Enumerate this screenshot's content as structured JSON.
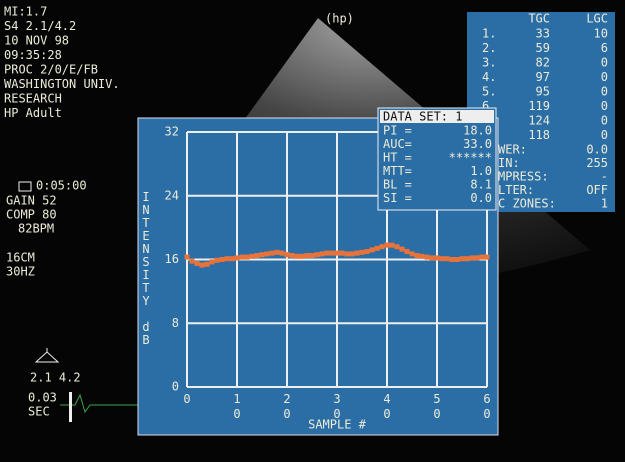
{
  "header": {
    "logo": "(hp)"
  },
  "left_panel": {
    "lines": [
      "MI:1.7",
      "S4 2.1/4.2",
      "10 NOV 98",
      "09:35:28",
      "PROC 2/0/E/FB",
      "WASHINGTON UNIV.",
      "RESEARCH",
      "HP Adult"
    ],
    "settings": [
      "0:05:00",
      "GAIN 52",
      "COMP 80",
      "82BPM",
      "16CM",
      "30HZ"
    ],
    "probe": "2.1 4.2",
    "sweep": [
      "0.03",
      "SEC"
    ]
  },
  "tgc_table": {
    "headers": [
      "TGC",
      "LGC"
    ],
    "rows": [
      {
        "label": "1.",
        "tgc": 33,
        "lgc": 10
      },
      {
        "label": "2.",
        "tgc": 59,
        "lgc": 6
      },
      {
        "label": "3.",
        "tgc": 82,
        "lgc": 0
      },
      {
        "label": "4.",
        "tgc": 97,
        "lgc": 0
      },
      {
        "label": "5.",
        "tgc": 95,
        "lgc": 0
      },
      {
        "label": "6",
        "tgc": 119,
        "lgc": 0
      },
      {
        "tgc": 124,
        "lgc": 0
      },
      {
        "tgc": 118,
        "lgc": 0
      }
    ],
    "extras": [
      {
        "label": "WER:",
        "value": "0.0"
      },
      {
        "label": "IN:",
        "value": "255"
      },
      {
        "label": "MPRESS:",
        "value": "-"
      },
      {
        "label": "LTER:",
        "value": "OFF"
      },
      {
        "label": "C ZONES:",
        "value": "1"
      }
    ]
  },
  "data_set": {
    "title": "DATA SET: 1",
    "rows": [
      {
        "label": "PI =",
        "value": "18.0"
      },
      {
        "label": "AUC=",
        "value": "33.0"
      },
      {
        "label": "HT =",
        "value": "******"
      },
      {
        "label": "MTT=",
        "value": "1.0"
      },
      {
        "label": "BL =",
        "value": "8.1"
      },
      {
        "label": "SI =",
        "value": "0.0"
      }
    ]
  },
  "chart_data": {
    "type": "scatter",
    "x_label": "SAMPLE #",
    "y_label": "INTENSITY dB",
    "color": "#e8733a",
    "grid": true,
    "xlim": [
      0,
      60
    ],
    "xticks": [
      0,
      10,
      20,
      30,
      40,
      50,
      60
    ],
    "ylim": [
      0,
      32
    ],
    "yticks": [
      0,
      8,
      16,
      24,
      32
    ],
    "x": [
      0,
      1,
      2,
      3,
      4,
      5,
      6,
      7,
      8,
      9,
      10,
      11,
      12,
      13,
      14,
      15,
      16,
      17,
      18,
      19,
      20,
      21,
      22,
      23,
      24,
      25,
      26,
      27,
      28,
      29,
      30,
      31,
      32,
      33,
      34,
      35,
      36,
      37,
      38,
      39,
      40,
      41,
      42,
      43,
      44,
      45,
      46,
      47,
      48,
      49,
      50,
      51,
      52,
      53,
      54,
      55,
      56,
      57,
      58,
      59,
      60
    ],
    "values": [
      16.3,
      15.8,
      15.5,
      15.3,
      15.4,
      15.7,
      15.9,
      16.0,
      16.1,
      16.1,
      16.2,
      16.3,
      16.3,
      16.4,
      16.5,
      16.6,
      16.7,
      16.8,
      16.9,
      16.8,
      16.6,
      16.5,
      16.4,
      16.4,
      16.5,
      16.5,
      16.6,
      16.7,
      16.8,
      16.8,
      16.8,
      16.8,
      16.7,
      16.7,
      16.8,
      16.9,
      17.0,
      17.2,
      17.4,
      17.6,
      17.8,
      17.8,
      17.6,
      17.3,
      17.0,
      16.7,
      16.5,
      16.4,
      16.3,
      16.2,
      16.2,
      16.1,
      16.1,
      16.0,
      16.0,
      16.1,
      16.1,
      16.2,
      16.2,
      16.3,
      16.3
    ]
  }
}
